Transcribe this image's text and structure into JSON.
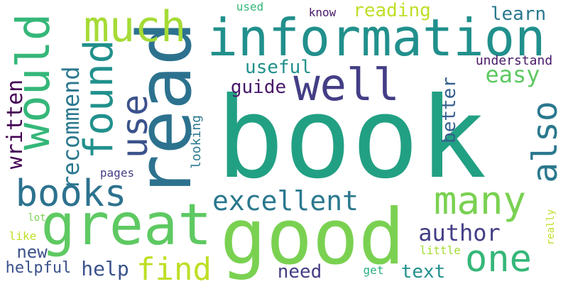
{
  "words": {
    "book": "book",
    "good": "good",
    "read": "read",
    "information": "information",
    "great": "great",
    "would": "would",
    "well": "well",
    "much": "much",
    "found": "found",
    "use": "use",
    "books": "books",
    "many": "many",
    "one": "one",
    "find": "find",
    "also": "also",
    "excellent": "excellent",
    "author": "author",
    "recommend": "recommend",
    "easy": "easy",
    "written": "written",
    "useful": "useful",
    "reading": "reading",
    "learn": "learn",
    "guide": "guide",
    "help": "help",
    "text": "text",
    "need": "need",
    "better": "better",
    "new": "new",
    "helpful": "helpful",
    "looking": "looking",
    "understand": "understand",
    "know": "know",
    "used": "used",
    "pages": "pages",
    "lot": "lot",
    "like": "like",
    "really": "really",
    "little": "little",
    "get": "get"
  }
}
